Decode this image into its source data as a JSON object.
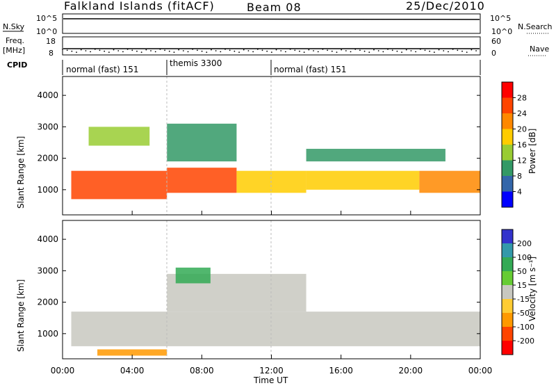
{
  "header": {
    "station": "Falkland Islands (fitACF)",
    "beam": "Beam 08",
    "date": "25/Dec/2010"
  },
  "strips": {
    "nsky_label": "N.Sky",
    "nsky_ticks": [
      "10^5",
      "10^0"
    ],
    "nsearch_label": "N.Search",
    "nsearch_ticks": [
      "10^5",
      "10^0"
    ],
    "freq_label": "Freq.",
    "freq_unit": "[MHz]",
    "freq_ticks": [
      "18",
      "8"
    ],
    "nave_label": "Nave",
    "nave_ticks": [
      "60",
      "0"
    ],
    "cpid_label": "CPID",
    "cpid_segments": [
      {
        "label": "normal (fast) 151",
        "start_h": 0,
        "end_h": 6
      },
      {
        "label": "themis 3300",
        "start_h": 6,
        "end_h": 12
      },
      {
        "label": "normal (fast) 151",
        "start_h": 12,
        "end_h": 24
      }
    ]
  },
  "axes": {
    "y_label": "Slant Range [km]",
    "y_ticks": [
      1000,
      2000,
      3000,
      4000
    ],
    "y_range": [
      200,
      4600
    ],
    "x_ticks": [
      "00:00",
      "04:00",
      "08:00",
      "12:00",
      "16:00",
      "20:00",
      "00:00"
    ],
    "x_label": "Time UT",
    "x_range_hours": [
      0,
      24
    ]
  },
  "colorbars": {
    "power": {
      "label": "Power [dB]",
      "ticks": [
        "28",
        "24",
        "20",
        "16",
        "12",
        "8",
        "4"
      ],
      "colors": [
        "#ff0000",
        "#ff4400",
        "#ff8800",
        "#ffcc00",
        "#99cc33",
        "#339966",
        "#3366aa",
        "#0000ff"
      ]
    },
    "velocity": {
      "label": "Velocity [m s⁻¹]",
      "ticks": [
        "200",
        "100",
        "50",
        "15",
        "-15",
        "-50",
        "-100",
        "-200"
      ],
      "colors": [
        "#3333cc",
        "#3399aa",
        "#33aa55",
        "#66cc33",
        "#c8c8c0",
        "#ffcc33",
        "#ff9900",
        "#ff4400",
        "#ff0000"
      ]
    }
  },
  "chart_data": [
    {
      "type": "heatmap",
      "name": "Power",
      "x_unit": "hours UT",
      "y_unit": "km",
      "note_bands": [
        {
          "t": [
            0.5,
            6.0
          ],
          "r": [
            700,
            1600
          ],
          "value_db": 27
        },
        {
          "t": [
            6.0,
            10.0
          ],
          "r": [
            900,
            1700
          ],
          "value_db": 26
        },
        {
          "t": [
            10.0,
            14.0
          ],
          "r": [
            900,
            1600
          ],
          "value_db": 20
        },
        {
          "t": [
            14.0,
            20.5
          ],
          "r": [
            1000,
            1600
          ],
          "value_db": 18
        },
        {
          "t": [
            20.5,
            24.0
          ],
          "r": [
            900,
            1600
          ],
          "value_db": 24
        },
        {
          "t": [
            1.5,
            5.0
          ],
          "r": [
            2400,
            3000
          ],
          "value_db": 14
        },
        {
          "t": [
            6.0,
            10.0
          ],
          "r": [
            1900,
            3100
          ],
          "value_db": 10
        },
        {
          "t": [
            14.0,
            22.0
          ],
          "r": [
            1900,
            2300
          ],
          "value_db": 10
        }
      ]
    },
    {
      "type": "heatmap",
      "name": "Velocity",
      "x_unit": "hours UT",
      "y_unit": "km",
      "note_bands": [
        {
          "t": [
            0.5,
            24.0
          ],
          "r": [
            600,
            1700
          ],
          "value_ms": 0
        },
        {
          "t": [
            6.0,
            14.0
          ],
          "r": [
            1700,
            2900
          ],
          "value_ms": 0
        },
        {
          "t": [
            2.0,
            6.0
          ],
          "r": [
            300,
            500
          ],
          "value_ms": -60
        },
        {
          "t": [
            6.5,
            8.5
          ],
          "r": [
            2600,
            3100
          ],
          "value_ms": 40
        }
      ]
    }
  ]
}
